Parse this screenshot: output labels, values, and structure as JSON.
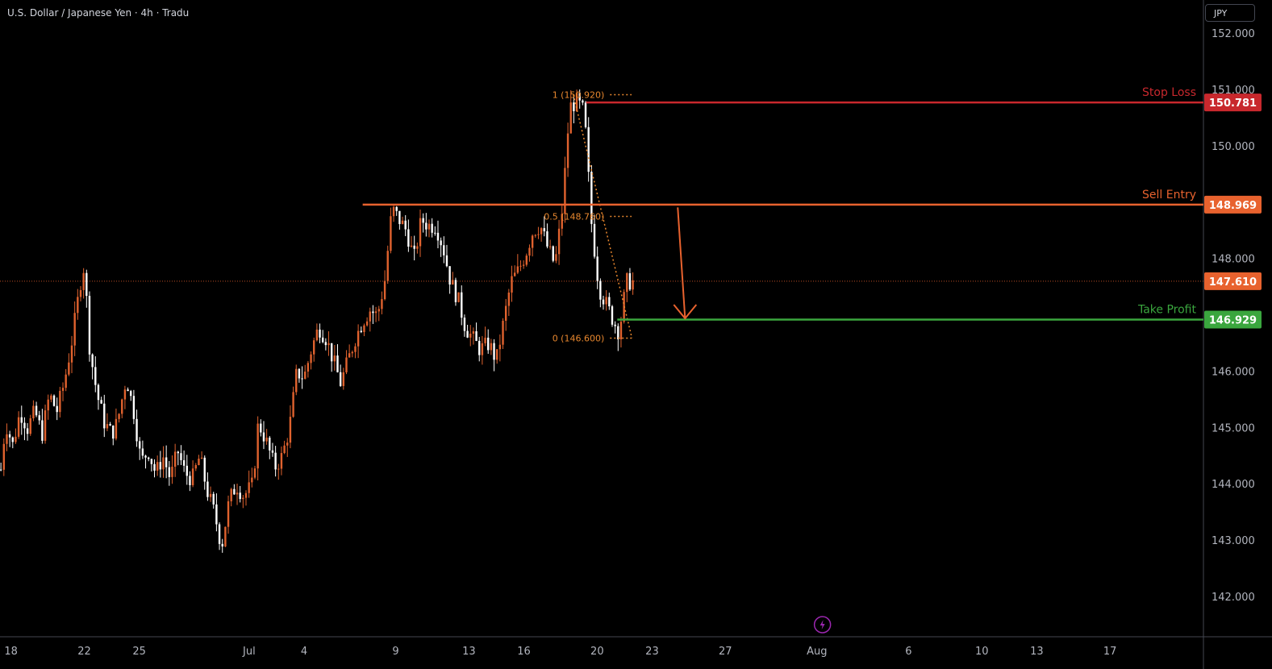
{
  "header": {
    "title": "U.S. Dollar / Japanese Yen · 4h · Tradu",
    "currency": "JPY"
  },
  "colors": {
    "background": "#000000",
    "bull": "#e0622e",
    "bear": "#ffffff",
    "stop_loss": "#c8282d",
    "sell_entry": "#e8622e",
    "take_profit": "#3aa63e",
    "current_price": "#e8622e",
    "fib": "#e8872e",
    "axis_text": "#b2b5be",
    "axis_line": "#434651"
  },
  "chart_data": {
    "type": "candlestick",
    "symbol": "U.S. Dollar / Japanese Yen",
    "timeframe": "4h",
    "ylim": [
      141.3,
      152.6
    ],
    "y_ticks": [
      "152.000",
      "151.000",
      "150.000",
      "148.000",
      "146.000",
      "145.000",
      "144.000",
      "143.000",
      "142.000"
    ],
    "x_ticks": [
      {
        "label": "18",
        "x": 0.5
      },
      {
        "label": "22",
        "x": 4.5
      },
      {
        "label": "25",
        "x": 7.5
      },
      {
        "label": "Jul",
        "x": 13.5
      },
      {
        "label": "4",
        "x": 16.5
      },
      {
        "label": "9",
        "x": 21.5
      },
      {
        "label": "13",
        "x": 25.5
      },
      {
        "label": "16",
        "x": 28.5
      },
      {
        "label": "20",
        "x": 32.5
      },
      {
        "label": "23",
        "x": 35.5
      },
      {
        "label": "27",
        "x": 39.5
      },
      {
        "label": "Aug",
        "x": 44.5
      },
      {
        "label": "6",
        "x": 49.5
      },
      {
        "label": "10",
        "x": 53.5
      },
      {
        "label": "13",
        "x": 56.5
      },
      {
        "label": "17",
        "x": 60.5
      }
    ],
    "xlim": [
      -0.1,
      65.6
    ],
    "daily_closes": [
      [
        -0.1,
        144.1
      ],
      [
        0.2,
        145.1
      ],
      [
        0.6,
        144.7
      ],
      [
        1.0,
        145.3
      ],
      [
        1.4,
        145.0
      ],
      [
        1.8,
        145.3
      ],
      [
        2.2,
        144.9
      ],
      [
        2.6,
        145.6
      ],
      [
        3.0,
        145.3
      ],
      [
        3.4,
        145.8
      ],
      [
        3.8,
        146.5
      ],
      [
        4.3,
        147.6
      ],
      [
        4.5,
        147.9
      ],
      [
        4.8,
        146.4
      ],
      [
        5.2,
        145.6
      ],
      [
        5.6,
        145.1
      ],
      [
        6.0,
        144.9
      ],
      [
        6.3,
        145.1
      ],
      [
        6.8,
        145.9
      ],
      [
        7.2,
        145.3
      ],
      [
        7.6,
        144.4
      ],
      [
        8.0,
        144.6
      ],
      [
        8.4,
        144.2
      ],
      [
        8.8,
        144.5
      ],
      [
        9.2,
        144.1
      ],
      [
        9.6,
        144.6
      ],
      [
        10.0,
        144.2
      ],
      [
        10.4,
        144.1
      ],
      [
        10.8,
        144.5
      ],
      [
        11.2,
        143.9
      ],
      [
        11.6,
        143.5
      ],
      [
        12.0,
        142.9
      ],
      [
        12.4,
        143.7
      ],
      [
        12.8,
        144.0
      ],
      [
        13.2,
        143.8
      ],
      [
        13.7,
        144.0
      ],
      [
        14.0,
        145.1
      ],
      [
        14.4,
        144.8
      ],
      [
        14.9,
        144.3
      ],
      [
        15.3,
        144.5
      ],
      [
        15.7,
        145.0
      ],
      [
        16.1,
        146.0
      ],
      [
        16.5,
        145.9
      ],
      [
        16.9,
        146.4
      ],
      [
        17.3,
        146.8
      ],
      [
        17.7,
        146.6
      ],
      [
        18.1,
        146.2
      ],
      [
        18.5,
        145.8
      ],
      [
        18.9,
        146.2
      ],
      [
        19.3,
        146.6
      ],
      [
        19.7,
        146.9
      ],
      [
        20.1,
        147.1
      ],
      [
        20.5,
        147.0
      ],
      [
        20.9,
        147.6
      ],
      [
        21.3,
        148.9
      ],
      [
        21.7,
        148.7
      ],
      [
        22.1,
        148.5
      ],
      [
        22.5,
        148.0
      ],
      [
        22.9,
        148.7
      ],
      [
        23.3,
        148.6
      ],
      [
        23.7,
        148.6
      ],
      [
        24.1,
        148.2
      ],
      [
        24.5,
        147.6
      ],
      [
        24.9,
        147.3
      ],
      [
        25.3,
        146.8
      ],
      [
        25.7,
        146.6
      ],
      [
        26.1,
        146.4
      ],
      [
        26.6,
        146.5
      ],
      [
        27.0,
        146.2
      ],
      [
        27.4,
        146.9
      ],
      [
        27.8,
        147.6
      ],
      [
        28.2,
        147.8
      ],
      [
        28.6,
        148.1
      ],
      [
        29.0,
        148.5
      ],
      [
        29.4,
        148.6
      ],
      [
        29.8,
        148.2
      ],
      [
        30.2,
        147.9
      ],
      [
        30.6,
        148.9
      ],
      [
        31.0,
        150.7
      ],
      [
        31.4,
        150.8
      ],
      [
        31.8,
        150.6
      ],
      [
        32.2,
        148.6
      ],
      [
        32.6,
        147.5
      ],
      [
        33.0,
        147.2
      ],
      [
        33.4,
        146.9
      ],
      [
        33.7,
        146.7
      ],
      [
        34.1,
        147.6
      ],
      [
        34.5,
        147.6
      ]
    ],
    "current_price": 147.61,
    "levels": [
      {
        "name": "Stop Loss",
        "price": 150.781,
        "label": "150.781",
        "from_x": 31.9
      },
      {
        "name": "Sell Entry",
        "price": 148.969,
        "label": "148.969",
        "from_x": 19.7
      },
      {
        "name": "Take Profit",
        "price": 146.929,
        "label": "146.929",
        "from_x": 33.6
      }
    ],
    "fib": [
      {
        "label": "1 (150.920)",
        "price": 150.92
      },
      {
        "label": "0.5 (148.760)",
        "price": 148.76
      },
      {
        "label": "0 (146.600)",
        "price": 146.6
      }
    ],
    "fib_range_x": [
      29.9,
      34.6
    ],
    "projection_arrow": {
      "from": [
        36.9,
        148.92
      ],
      "to": [
        37.3,
        146.95
      ]
    },
    "legend_position": "none",
    "grid": false
  }
}
